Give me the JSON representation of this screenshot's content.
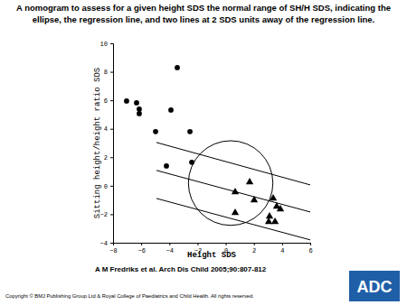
{
  "chart_data": {
    "type": "scatter",
    "title": "A nomogram to assess for a given height SDS the normal range of SH/H SDS, indicating the ellipse, the regression line, and two lines at 2 SDS units away of the regression line.",
    "x_label": "Height SDS",
    "y_label": "Sitting height/height ratio SDS",
    "source": "A M Fredriks et al. Arch Dis Child 2005;90:807-812",
    "copyright": "Copyright © BMJ Publishing Group Ltd & Royal College of Paediatrics and Child Health. All rights reserved.",
    "logo": "ADC",
    "xlim": [
      -8,
      6
    ],
    "xticks": [
      -8,
      -6,
      -4,
      -2,
      0,
      2,
      4,
      6
    ],
    "ylim": [
      -4,
      10
    ],
    "yticks": [
      -4,
      -2,
      0,
      2,
      4,
      6,
      8,
      10
    ],
    "color": "#000000",
    "series": [
      {
        "marker": "circle",
        "x": [
          -7.04,
          -6.33,
          -6.14,
          -6.14,
          -4.98,
          -3.44,
          -3.89,
          -4.21,
          -2.54,
          -2.41
        ],
        "values": [
          5.95,
          5.82,
          5.38,
          5.06,
          3.8,
          8.29,
          5.32,
          1.39,
          3.8,
          1.65
        ]
      },
      {
        "marker": "triangle",
        "x": [
          0.67,
          1.7,
          2.02,
          0.67,
          3.37,
          3.62,
          3.88,
          3.11,
          3.05,
          3.5
        ],
        "values": [
          -0.44,
          0.25,
          -1.01,
          -1.9,
          -0.89,
          -1.46,
          -1.65,
          -2.15,
          -2.53,
          -2.53
        ]
      }
    ],
    "lines": [
      {
        "x": [
          -4.92,
          6
        ],
        "values": [
          3.04,
          0.06
        ]
      },
      {
        "x": [
          -4.92,
          6
        ],
        "values": [
          1.08,
          -1.84
        ]
      },
      {
        "x": [
          -4.92,
          6
        ],
        "values": [
          -0.89,
          -3.8
        ]
      }
    ],
    "ellipse": {
      "cx": 0.35,
      "cy": 0.19,
      "rx": 3.0,
      "ry": 2.97
    }
  }
}
